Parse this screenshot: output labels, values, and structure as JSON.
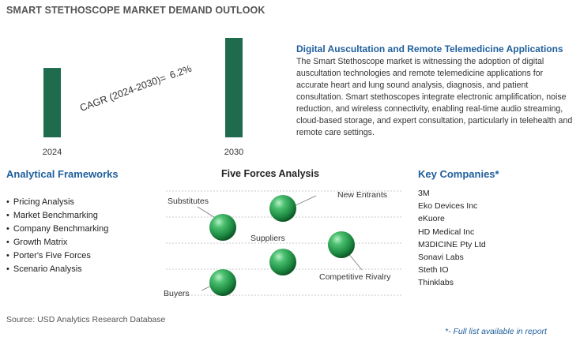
{
  "page_title": "SMART STETHOSCOPE MARKET DEMAND OUTLOOK",
  "chart_data": {
    "type": "bar",
    "categories": [
      "2024",
      "2030"
    ],
    "values": [
      1,
      1.433
    ],
    "color": "#1e6b4e",
    "annotation_label": "CAGR (2024-2030)=",
    "annotation_value": "6.2%"
  },
  "description": {
    "title": "Digital Auscultation and Remote Telemedicine Applications",
    "text": "The Smart Stethoscope market is witnessing the adoption of digital auscultation technologies and remote telemedicine applications for accurate heart and lung sound analysis, diagnosis, and patient consultation. Smart stethoscopes integrate electronic amplification, noise reduction, and wireless connectivity, enabling real-time audio streaming, cloud-based storage, and expert consultation, particularly in telehealth and remote care settings."
  },
  "frameworks": {
    "title": "Analytical Frameworks",
    "items": [
      "Pricing Analysis",
      "Market Benchmarking",
      "Company Benchmarking",
      "Growth Matrix",
      "Porter's Five Forces",
      "Scenario Analysis"
    ]
  },
  "five_forces": {
    "title": "Five Forces Analysis",
    "labels": {
      "substitutes": "Substitutes",
      "new_entrants": "New Entrants",
      "suppliers": "Suppliers",
      "competitive_rivalry": "Competitive Rivalry",
      "buyers": "Buyers"
    },
    "sphere_color": "#2aa055"
  },
  "companies": {
    "title": "Key Companies*",
    "items": [
      "3M",
      "Eko Devices Inc",
      "eKuore",
      "HD Medical Inc",
      "M3DICINE Pty Ltd",
      "Sonavi Labs",
      "Steth IO",
      "Thinklabs"
    ]
  },
  "source": "Source: USD Analytics Research Database",
  "footnote": "*- Full list available in report"
}
